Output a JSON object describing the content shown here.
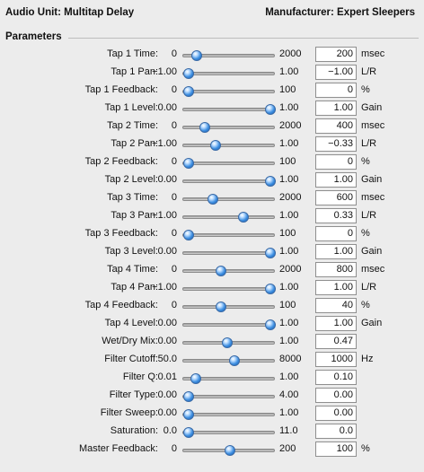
{
  "header": {
    "audio_unit": "Audio Unit: Multitap Delay",
    "manufacturer": "Manufacturer: Expert Sleepers"
  },
  "section_title": "Parameters",
  "params": [
    {
      "label": "Tap 1 Time:",
      "min": "0",
      "max": "2000",
      "value": "200",
      "unit": "msec",
      "level": 0.1
    },
    {
      "label": "Tap 1 Pan:",
      "min": "−1.00",
      "max": "1.00",
      "value": "−1.00",
      "unit": "L/R",
      "level": 0.0
    },
    {
      "label": "Tap 1 Feedback:",
      "min": "0",
      "max": "100",
      "value": "0",
      "unit": "%",
      "level": 0.0
    },
    {
      "label": "Tap 1 Level:",
      "min": "0.00",
      "max": "1.00",
      "value": "1.00",
      "unit": "Gain",
      "level": 1.0
    },
    {
      "label": "Tap 2 Time:",
      "min": "0",
      "max": "2000",
      "value": "400",
      "unit": "msec",
      "level": 0.2
    },
    {
      "label": "Tap 2 Pan:",
      "min": "−1.00",
      "max": "1.00",
      "value": "−0.33",
      "unit": "L/R",
      "level": 0.335
    },
    {
      "label": "Tap 2 Feedback:",
      "min": "0",
      "max": "100",
      "value": "0",
      "unit": "%",
      "level": 0.0
    },
    {
      "label": "Tap 2 Level:",
      "min": "0.00",
      "max": "1.00",
      "value": "1.00",
      "unit": "Gain",
      "level": 1.0
    },
    {
      "label": "Tap 3 Time:",
      "min": "0",
      "max": "2000",
      "value": "600",
      "unit": "msec",
      "level": 0.3
    },
    {
      "label": "Tap 3 Pan:",
      "min": "−1.00",
      "max": "1.00",
      "value": "0.33",
      "unit": "L/R",
      "level": 0.665
    },
    {
      "label": "Tap 3 Feedback:",
      "min": "0",
      "max": "100",
      "value": "0",
      "unit": "%",
      "level": 0.0
    },
    {
      "label": "Tap 3 Level:",
      "min": "0.00",
      "max": "1.00",
      "value": "1.00",
      "unit": "Gain",
      "level": 1.0
    },
    {
      "label": "Tap 4 Time:",
      "min": "0",
      "max": "2000",
      "value": "800",
      "unit": "msec",
      "level": 0.4
    },
    {
      "label": "Tap 4 Pan:",
      "min": "−1.00",
      "max": "1.00",
      "value": "1.00",
      "unit": "L/R",
      "level": 1.0
    },
    {
      "label": "Tap 4 Feedback:",
      "min": "0",
      "max": "100",
      "value": "40",
      "unit": "%",
      "level": 0.4
    },
    {
      "label": "Tap 4 Level:",
      "min": "0.00",
      "max": "1.00",
      "value": "1.00",
      "unit": "Gain",
      "level": 1.0
    },
    {
      "label": "Wet/Dry Mix:",
      "min": "0.00",
      "max": "1.00",
      "value": "0.47",
      "unit": "",
      "level": 0.47
    },
    {
      "label": "Filter Cutoff:",
      "min": "50.0",
      "max": "8000",
      "value": "1000",
      "unit": "Hz",
      "level": 0.56
    },
    {
      "label": "Filter Q:",
      "min": "0.01",
      "max": "1.00",
      "value": "0.10",
      "unit": "",
      "level": 0.09
    },
    {
      "label": "Filter Type:",
      "min": "0.00",
      "max": "4.00",
      "value": "0.00",
      "unit": "",
      "level": 0.0
    },
    {
      "label": "Filter Sweep:",
      "min": "0.00",
      "max": "1.00",
      "value": "0.00",
      "unit": "",
      "level": 0.0
    },
    {
      "label": "Saturation:",
      "min": "0.0",
      "max": "11.0",
      "value": "0.0",
      "unit": "",
      "level": 0.0
    },
    {
      "label": "Master Feedback:",
      "min": "0",
      "max": "200",
      "value": "100",
      "unit": "%",
      "level": 0.5
    }
  ]
}
